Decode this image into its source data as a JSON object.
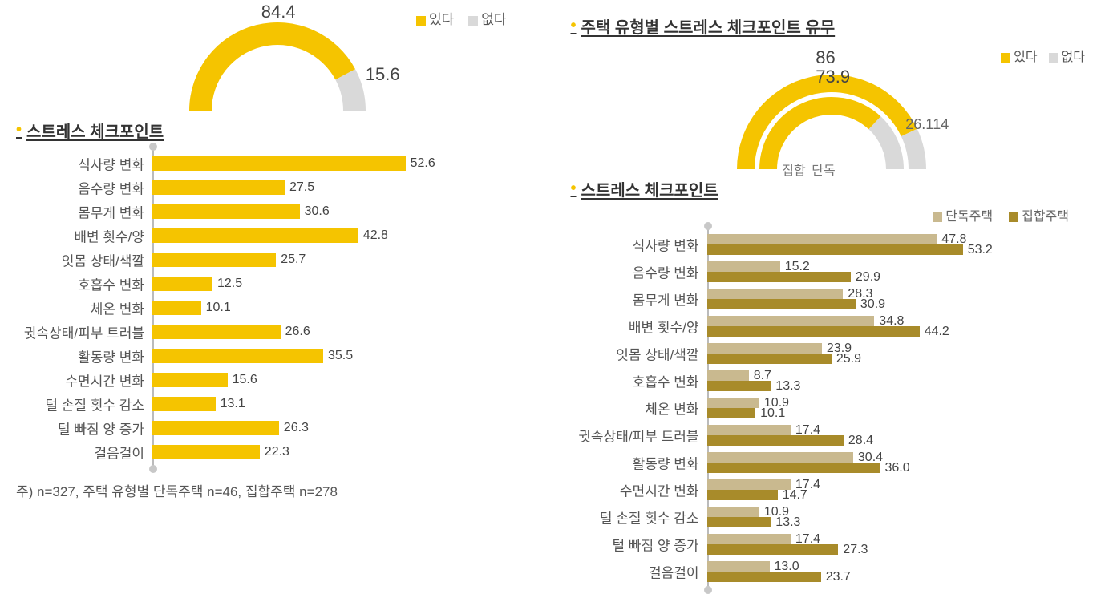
{
  "colors": {
    "accent": "#f5c400",
    "grey": "#cccccc",
    "darkGold": "#a88b2a",
    "lightTan": "#c9b98f",
    "text": "#444444"
  },
  "left": {
    "gauge": {
      "legend": {
        "yes": "있다",
        "no": "없다"
      },
      "yes_value": 84.4,
      "no_value": 15.6,
      "yes_color": "#f5c400",
      "no_color": "#d9d9d9",
      "ring_thickness": 28,
      "radius": 110
    },
    "bars_title": "스트레스 체크포인트",
    "bars": {
      "type": "bar",
      "max": 60,
      "bar_color": "#f5c400",
      "categories": [
        "식사량 변화",
        "음수량 변화",
        "몸무게 변화",
        "배변 횟수/양",
        "잇몸 상태/색깔",
        "호흡수 변화",
        "체온 변화",
        "귓속상태/피부 트러블",
        "활동량 변화",
        "수면시간 변화",
        "털 손질 횟수 감소",
        "털 빠짐 양 증가",
        "걸음걸이"
      ],
      "values": [
        52.6,
        27.5,
        30.6,
        42.8,
        25.7,
        12.5,
        10.1,
        26.6,
        35.5,
        15.6,
        13.1,
        26.3,
        22.3
      ]
    },
    "footnote": "주) n=327, 주택 유형별 단독주택 n=46, 집합주택 n=278"
  },
  "right": {
    "top_title": "주택 유형별 스트레스 체크포인트 유무",
    "gauge": {
      "legend": {
        "yes": "있다",
        "no": "없다"
      },
      "series_labels": {
        "outer": "집합",
        "inner": "단독"
      },
      "outer": {
        "yes_value": 86.0,
        "no_value": 14.0,
        "yes_color": "#f5c400",
        "no_color": "#d9d9d9",
        "radius": 118,
        "thickness": 22
      },
      "inner": {
        "yes_value": 73.9,
        "no_value": 26.1,
        "yes_color": "#f5c400",
        "no_color": "#d9d9d9",
        "radius": 90,
        "thickness": 22
      }
    },
    "bars_title": "스트레스 체크포인트",
    "bars_legend": {
      "a": "단독주택",
      "b": "집합주택"
    },
    "bars": {
      "type": "grouped-bar",
      "max": 60,
      "color_a": "#c9b98f",
      "color_b": "#a88b2a",
      "categories": [
        "식사량 변화",
        "음수량 변화",
        "몸무게 변화",
        "배변 횟수/양",
        "잇몸 상태/색깔",
        "호흡수 변화",
        "체온 변화",
        "귓속상태/피부 트러블",
        "활동량 변화",
        "수면시간 변화",
        "털 손질 횟수 감소",
        "털 빠짐 양 증가",
        "걸음걸이"
      ],
      "values_a": [
        47.8,
        15.2,
        28.3,
        34.8,
        23.9,
        8.7,
        10.9,
        17.4,
        30.4,
        17.4,
        10.9,
        17.4,
        13.0
      ],
      "values_b": [
        53.2,
        29.9,
        30.9,
        44.2,
        25.9,
        13.3,
        10.1,
        28.4,
        36.0,
        14.7,
        13.3,
        27.3,
        23.7
      ]
    }
  }
}
